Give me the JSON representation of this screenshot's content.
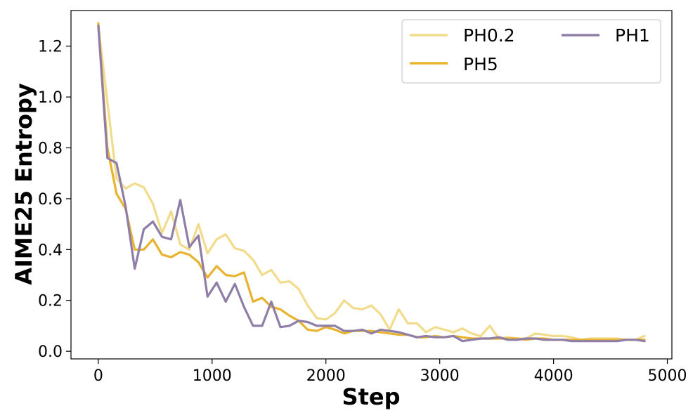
{
  "chart_data": {
    "type": "line",
    "title": "",
    "xlabel": "Step",
    "ylabel": "AIME25 Entropy",
    "xlim": [
      -240,
      5040
    ],
    "ylim": [
      -0.03,
      1.34
    ],
    "xticks": [
      0,
      1000,
      2000,
      3000,
      4000,
      5000
    ],
    "xtick_labels": [
      "0",
      "1000",
      "2000",
      "3000",
      "4000",
      "5000"
    ],
    "yticks": [
      0.0,
      0.2,
      0.4,
      0.6,
      0.8,
      1.0,
      1.2
    ],
    "ytick_labels": [
      "0.0",
      "0.2",
      "0.4",
      "0.6",
      "0.8",
      "1.0",
      "1.2"
    ],
    "grid": false,
    "legend_position": "top-right",
    "x": [
      0,
      80,
      160,
      240,
      320,
      400,
      480,
      560,
      640,
      720,
      800,
      880,
      960,
      1040,
      1120,
      1200,
      1280,
      1360,
      1440,
      1520,
      1600,
      1680,
      1760,
      1840,
      1920,
      2000,
      2080,
      2160,
      2240,
      2320,
      2400,
      2480,
      2560,
      2640,
      2720,
      2800,
      2880,
      2960,
      3040,
      3120,
      3200,
      3280,
      3360,
      3440,
      3520,
      3600,
      3680,
      3760,
      3840,
      3920,
      4000,
      4080,
      4160,
      4240,
      4320,
      4400,
      4480,
      4560,
      4640,
      4720,
      4800
    ],
    "series": [
      {
        "name": "PH0.2",
        "color": "#f2dc8c",
        "values": [
          1.28,
          0.98,
          0.68,
          0.64,
          0.66,
          0.645,
          0.58,
          0.465,
          0.55,
          0.42,
          0.4,
          0.5,
          0.385,
          0.44,
          0.46,
          0.405,
          0.395,
          0.36,
          0.3,
          0.32,
          0.27,
          0.275,
          0.245,
          0.18,
          0.13,
          0.125,
          0.15,
          0.2,
          0.17,
          0.165,
          0.18,
          0.145,
          0.085,
          0.165,
          0.11,
          0.11,
          0.075,
          0.095,
          0.085,
          0.075,
          0.09,
          0.07,
          0.06,
          0.1,
          0.05,
          0.055,
          0.05,
          0.05,
          0.07,
          0.065,
          0.06,
          0.06,
          0.055,
          0.045,
          0.05,
          0.05,
          0.05,
          0.05,
          0.045,
          0.045,
          0.06
        ]
      },
      {
        "name": "PH5",
        "color": "#e8b32e",
        "values": [
          1.29,
          0.8,
          0.62,
          0.56,
          0.4,
          0.4,
          0.44,
          0.38,
          0.37,
          0.39,
          0.38,
          0.35,
          0.29,
          0.335,
          0.3,
          0.295,
          0.31,
          0.195,
          0.21,
          0.175,
          0.165,
          0.14,
          0.12,
          0.085,
          0.08,
          0.095,
          0.085,
          0.07,
          0.08,
          0.08,
          0.08,
          0.075,
          0.07,
          0.065,
          0.065,
          0.055,
          0.055,
          0.06,
          0.055,
          0.06,
          0.055,
          0.05,
          0.05,
          0.05,
          0.05,
          0.05,
          0.05,
          0.045,
          0.05,
          0.05,
          0.045,
          0.045,
          0.045,
          0.045,
          0.045,
          0.045,
          0.045,
          0.045,
          0.045,
          0.045,
          0.045
        ]
      },
      {
        "name": "PH1",
        "color": "#8f7fa8",
        "values": [
          1.28,
          0.76,
          0.74,
          0.57,
          0.325,
          0.48,
          0.51,
          0.45,
          0.44,
          0.595,
          0.41,
          0.455,
          0.215,
          0.27,
          0.195,
          0.265,
          0.175,
          0.1,
          0.1,
          0.195,
          0.095,
          0.1,
          0.12,
          0.115,
          0.1,
          0.1,
          0.1,
          0.08,
          0.08,
          0.085,
          0.07,
          0.085,
          0.08,
          0.075,
          0.065,
          0.055,
          0.06,
          0.055,
          0.055,
          0.06,
          0.04,
          0.045,
          0.05,
          0.05,
          0.055,
          0.045,
          0.045,
          0.05,
          0.05,
          0.045,
          0.045,
          0.045,
          0.04,
          0.04,
          0.04,
          0.04,
          0.04,
          0.04,
          0.045,
          0.045,
          0.04
        ]
      }
    ]
  }
}
